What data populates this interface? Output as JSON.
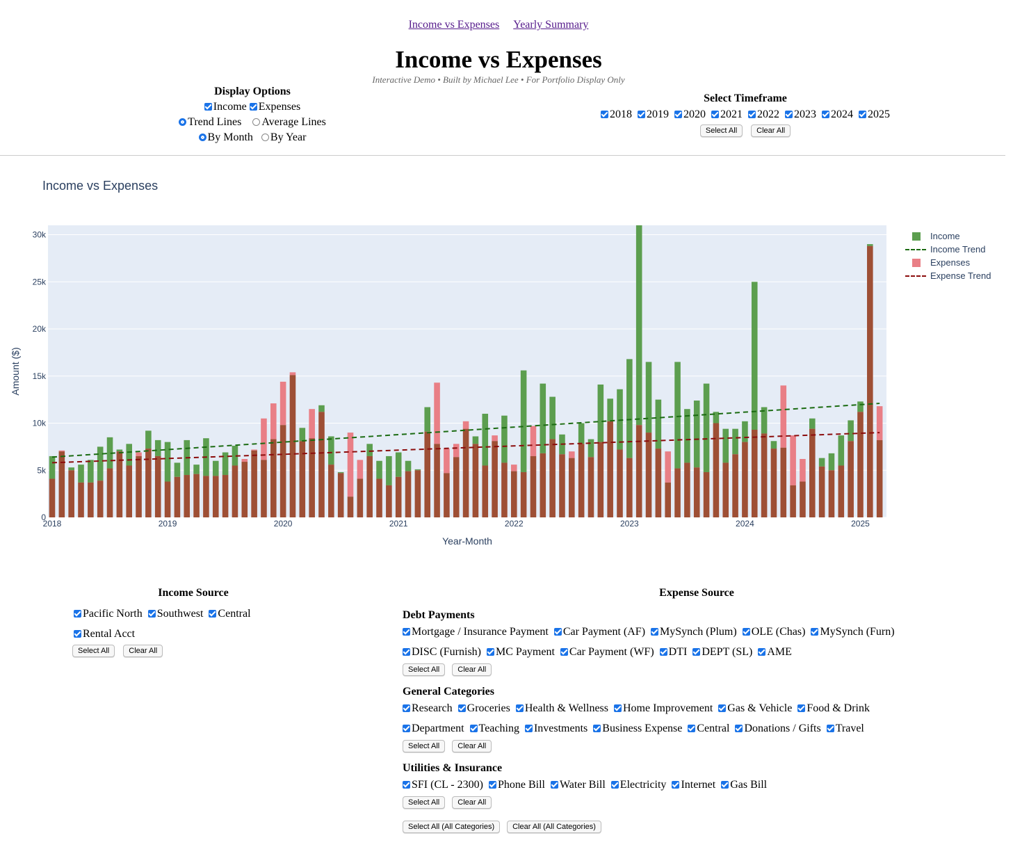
{
  "nav": {
    "link1": "Income vs Expenses",
    "link2": "Yearly Summary"
  },
  "header": {
    "title": "Income vs Expenses",
    "subtitle": "Interactive Demo • Built by Michael Lee • For Portfolio Display Only"
  },
  "display_options": {
    "title": "Display Options",
    "income": "Income",
    "expenses": "Expenses",
    "trend_lines": "Trend Lines",
    "average_lines": "Average Lines",
    "by_month": "By Month",
    "by_year": "By Year"
  },
  "timeframe": {
    "title": "Select Timeframe",
    "years": [
      "2018",
      "2019",
      "2020",
      "2021",
      "2022",
      "2023",
      "2024",
      "2025"
    ],
    "select_all": "Select All",
    "clear_all": "Clear All"
  },
  "colors": {
    "income": "#5c9e4f",
    "expenses": "#e97f86",
    "overlap": "#9e4f35",
    "income_trend": "#1b6b12",
    "expense_trend": "#8b0c0c",
    "plot_bg": "#e5ecf6"
  },
  "chart_data": {
    "type": "bar",
    "title": "Income vs Expenses",
    "xlabel": "Year-Month",
    "ylabel": "Amount ($)",
    "ylim": [
      0,
      31000
    ],
    "y_ticks": [
      "0",
      "5k",
      "10k",
      "15k",
      "20k",
      "25k",
      "30k"
    ],
    "x_ticks": [
      "2018",
      "2019",
      "2020",
      "2021",
      "2022",
      "2023",
      "2024",
      "2025"
    ],
    "x_start": "2018-01",
    "legend": [
      "Income",
      "Income Trend",
      "Expenses",
      "Expense Trend"
    ],
    "legend_position": "right",
    "series": [
      {
        "name": "Income",
        "values": [
          6500,
          7000,
          5300,
          5600,
          6100,
          7500,
          8500,
          7200,
          7800,
          6500,
          9200,
          8200,
          8000,
          5800,
          8200,
          5600,
          8400,
          6000,
          6900,
          7600,
          5900,
          7100,
          6100,
          8300,
          9800,
          15100,
          9500,
          8400,
          11900,
          8600,
          4800,
          2200,
          4100,
          7800,
          6000,
          6500,
          6900,
          6000,
          5100,
          11700,
          7800,
          4700,
          6400,
          9400,
          8600,
          11000,
          8100,
          10800,
          4900,
          15600,
          6500,
          14200,
          12800,
          8800,
          6300,
          10000,
          8300,
          14100,
          12600,
          13600,
          16800,
          31000,
          16500,
          12500,
          3700,
          16500,
          11500,
          12400,
          14200,
          11200,
          9400,
          9400,
          10200,
          25000,
          11700,
          8100,
          7400,
          3400,
          3800,
          10500,
          6300,
          6800,
          8700,
          10300,
          12300,
          29000,
          8200
        ]
      },
      {
        "name": "Expenses",
        "values": [
          4100,
          7100,
          5000,
          3700,
          3700,
          3900,
          5200,
          7000,
          5500,
          6900,
          7300,
          6500,
          3800,
          4300,
          4500,
          4600,
          4400,
          4400,
          4500,
          5500,
          6200,
          7200,
          10500,
          12100,
          14400,
          15400,
          8100,
          11500,
          11200,
          5600,
          4700,
          9000,
          6100,
          6500,
          4100,
          3400,
          4300,
          4900,
          5000,
          9100,
          14300,
          7300,
          7800,
          10200,
          7800,
          5500,
          8700,
          5800,
          5600,
          4800,
          9700,
          6800,
          8300,
          6700,
          7000,
          7800,
          6400,
          8000,
          10200,
          7200,
          6300,
          9800,
          9000,
          7300,
          7000,
          5200,
          5800,
          5300,
          4800,
          10000,
          5800,
          6700,
          8000,
          9300,
          8900,
          7300,
          14000,
          8700,
          6200,
          9400,
          5400,
          5000,
          5500,
          8100,
          11200,
          28800,
          11800
        ]
      },
      {
        "name": "Income Trend",
        "values": [
          6400,
          12100
        ]
      },
      {
        "name": "Expense Trend",
        "values": [
          5800,
          9000
        ]
      }
    ]
  },
  "income_source": {
    "title": "Income Source",
    "items": [
      "Pacific North",
      "Southwest",
      "Central",
      "Rental Acct"
    ],
    "select_all": "Select All",
    "clear_all": "Clear All"
  },
  "expense_source": {
    "title": "Expense Source",
    "debt": {
      "title": "Debt Payments",
      "items": [
        "Mortgage / Insurance Payment",
        "Car Payment (AF)",
        "MySynch (Plum)",
        "OLE (Chas)",
        "MySynch (Furn)",
        "DISC (Furnish)",
        "MC Payment",
        "Car Payment (WF)",
        "DTI",
        "DEPT (SL)",
        "AME"
      ]
    },
    "general": {
      "title": "General Categories",
      "items": [
        "Research",
        "Groceries",
        "Health & Wellness",
        "Home Improvement",
        "Gas & Vehicle",
        "Food & Drink",
        "Department",
        "Teaching",
        "Investments",
        "Business Expense",
        "Central",
        "Donations / Gifts",
        "Travel"
      ]
    },
    "utilities": {
      "title": "Utilities & Insurance",
      "items": [
        "SFI (CL - 2300)",
        "Phone Bill",
        "Water Bill",
        "Electricity",
        "Internet",
        "Gas Bill"
      ]
    },
    "select_all": "Select All",
    "clear_all": "Clear All",
    "select_all_all": "Select All (All Categories)",
    "clear_all_all": "Clear All (All Categories)"
  }
}
